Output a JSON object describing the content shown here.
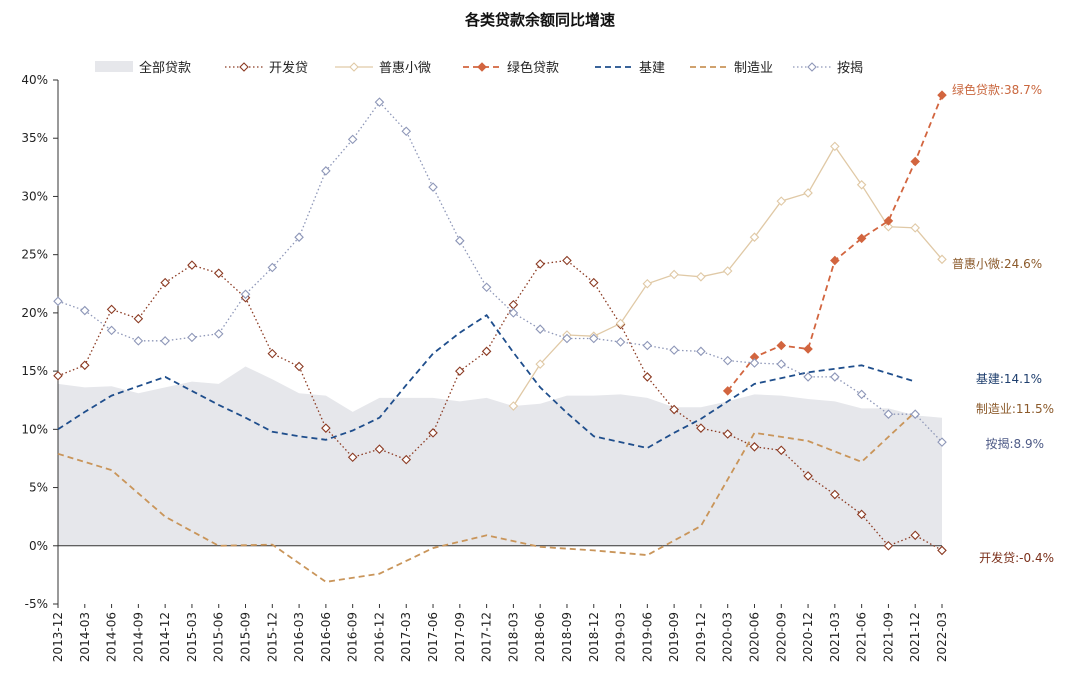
{
  "chart_data": {
    "type": "line",
    "title": "各类贷款余额同比增速",
    "xlabel": "",
    "ylabel": "",
    "ylim": [
      -5,
      40
    ],
    "yticks": [
      "-5%",
      "0%",
      "5%",
      "10%",
      "15%",
      "20%",
      "25%",
      "30%",
      "35%",
      "40%"
    ],
    "ytick_values": [
      -5,
      0,
      5,
      10,
      15,
      20,
      25,
      30,
      35,
      40
    ],
    "grid": false,
    "legend_position": "top",
    "categories": [
      "2013-12",
      "2014-03",
      "2014-06",
      "2014-09",
      "2014-12",
      "2015-03",
      "2015-06",
      "2015-09",
      "2015-12",
      "2016-03",
      "2016-06",
      "2016-09",
      "2016-12",
      "2017-03",
      "2017-06",
      "2017-09",
      "2017-12",
      "2018-03",
      "2018-06",
      "2018-09",
      "2018-12",
      "2019-03",
      "2019-06",
      "2019-09",
      "2019-12",
      "2020-03",
      "2020-06",
      "2020-09",
      "2020-12",
      "2021-03",
      "2021-06",
      "2021-09",
      "2021-12",
      "2022-03"
    ],
    "series": [
      {
        "name": "全部贷款",
        "style": "area",
        "color": "#e6e7eb",
        "values": [
          13.9,
          13.6,
          13.7,
          13.1,
          13.6,
          14.1,
          13.9,
          15.4,
          14.3,
          13.1,
          12.9,
          11.5,
          12.7,
          12.7,
          12.7,
          12.4,
          12.7,
          12.0,
          12.2,
          12.9,
          12.9,
          13.0,
          12.7,
          11.9,
          11.9,
          12.4,
          13.0,
          12.9,
          12.6,
          12.4,
          11.8,
          11.8,
          11.2,
          11.0
        ]
      },
      {
        "name": "开发贷",
        "style": "diamond-dotted",
        "color": "#8b3a22",
        "values": [
          14.6,
          15.5,
          20.3,
          19.5,
          22.6,
          24.1,
          23.4,
          21.3,
          16.5,
          15.4,
          10.1,
          7.6,
          8.3,
          7.4,
          9.7,
          15.0,
          16.7,
          20.7,
          24.2,
          24.5,
          22.6,
          19.0,
          14.5,
          11.7,
          10.1,
          9.6,
          8.5,
          8.2,
          6.0,
          4.4,
          2.7,
          0.0,
          0.9,
          -0.4
        ]
      },
      {
        "name": "普惠小微",
        "style": "diamond-solid",
        "color": "#e0c9a6",
        "values": [
          null,
          null,
          null,
          null,
          null,
          null,
          null,
          null,
          null,
          null,
          null,
          null,
          null,
          null,
          null,
          null,
          null,
          12.0,
          15.6,
          18.1,
          18.0,
          19.1,
          22.5,
          23.3,
          23.1,
          23.6,
          26.5,
          29.6,
          30.3,
          34.3,
          31.0,
          27.4,
          27.3,
          24.6
        ]
      },
      {
        "name": "绿色贷款",
        "style": "diamond-dashed",
        "color": "#d2653f",
        "values": [
          null,
          null,
          null,
          null,
          null,
          null,
          null,
          null,
          null,
          null,
          null,
          null,
          null,
          null,
          null,
          null,
          null,
          null,
          null,
          null,
          null,
          null,
          null,
          null,
          null,
          13.3,
          16.2,
          17.2,
          16.9,
          24.5,
          26.4,
          27.9,
          33.0,
          38.7
        ]
      },
      {
        "name": "基建",
        "style": "dashed",
        "color": "#1f4e8c",
        "values": [
          10.0,
          11.5,
          12.9,
          13.7,
          14.5,
          13.3,
          12.1,
          11.0,
          9.8,
          9.4,
          9.1,
          9.9,
          11.0,
          13.8,
          16.5,
          18.3,
          19.8,
          16.6,
          13.6,
          11.4,
          9.4,
          8.9,
          8.4,
          9.7,
          10.9,
          12.4,
          13.9,
          14.4,
          14.9,
          15.2,
          15.5,
          14.8,
          14.1,
          null
        ]
      },
      {
        "name": "制造业",
        "style": "dashed",
        "color": "#c9955a",
        "values": [
          7.9,
          null,
          6.5,
          null,
          2.5,
          null,
          0.0,
          null,
          0.1,
          null,
          -3.1,
          null,
          -2.4,
          null,
          -0.2,
          null,
          0.9,
          null,
          -0.1,
          null,
          -0.4,
          null,
          -0.8,
          null,
          1.7,
          null,
          9.7,
          null,
          9.0,
          null,
          7.2,
          null,
          11.5,
          null
        ]
      },
      {
        "name": "按揭",
        "style": "diamond-dotted",
        "color": "#8e97b8",
        "values": [
          21.0,
          20.2,
          18.5,
          17.6,
          17.6,
          17.9,
          18.2,
          21.6,
          23.9,
          26.5,
          32.2,
          34.9,
          38.1,
          35.6,
          30.8,
          26.2,
          22.2,
          20.0,
          18.6,
          17.8,
          17.8,
          17.5,
          17.2,
          16.8,
          16.7,
          15.9,
          15.7,
          15.6,
          14.5,
          14.5,
          13.0,
          11.3,
          11.3,
          8.9
        ]
      }
    ],
    "annotations": [
      {
        "series": "绿色贷款",
        "text": "绿色贷款:38.7%",
        "color": "#c9663d"
      },
      {
        "series": "普惠小微",
        "text": "普惠小微:24.6%",
        "color": "#8b5a2b"
      },
      {
        "series": "基建",
        "text": "基建:14.1%",
        "color": "#1f3f6e"
      },
      {
        "series": "制造业",
        "text": "制造业:11.5%",
        "color": "#8b5a2b"
      },
      {
        "series": "按揭",
        "text": "按揭:8.9%",
        "color": "#4d5a86"
      },
      {
        "series": "开发贷",
        "text": "开发贷:-0.4%",
        "color": "#7a2f1a"
      }
    ]
  }
}
